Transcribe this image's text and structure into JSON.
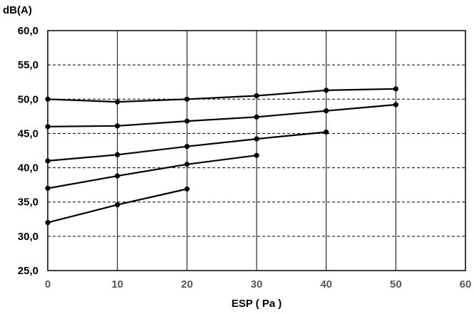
{
  "chart_data": {
    "type": "line",
    "ylabel": "dB(A)",
    "xlabel": "ESP ( Pa )",
    "xlim": [
      0,
      60
    ],
    "ylim": [
      25,
      60
    ],
    "x_ticks": [
      0,
      10,
      20,
      30,
      40,
      50,
      60
    ],
    "x_tick_labels": [
      "0",
      "10",
      "20",
      "30",
      "40",
      "50",
      "60"
    ],
    "y_ticks": [
      25,
      30,
      35,
      40,
      45,
      50,
      55,
      60
    ],
    "y_tick_labels": [
      "25,0",
      "30,0",
      "35,0",
      "40,0",
      "45,0",
      "50,0",
      "55,0",
      "60,0"
    ],
    "grid": {
      "horizontal": "dashed",
      "vertical": "solid"
    },
    "legend": "none",
    "colors": {
      "line": "#000000",
      "grid": "#000000",
      "x_tick_text": "#595959"
    },
    "series": [
      {
        "x": [
          0,
          10,
          20,
          30,
          40,
          50
        ],
        "y": [
          50.0,
          49.6,
          50.0,
          50.5,
          51.3,
          51.5
        ]
      },
      {
        "x": [
          0,
          10,
          20,
          30,
          40,
          50
        ],
        "y": [
          46.0,
          46.1,
          46.8,
          47.4,
          48.3,
          49.2
        ]
      },
      {
        "x": [
          0,
          10,
          20,
          30,
          40
        ],
        "y": [
          41.0,
          41.9,
          43.1,
          44.2,
          45.2
        ]
      },
      {
        "x": [
          0,
          10,
          20,
          30
        ],
        "y": [
          37.0,
          38.8,
          40.5,
          41.8
        ]
      },
      {
        "x": [
          0,
          10,
          20
        ],
        "y": [
          32.0,
          34.6,
          36.9
        ]
      }
    ]
  }
}
